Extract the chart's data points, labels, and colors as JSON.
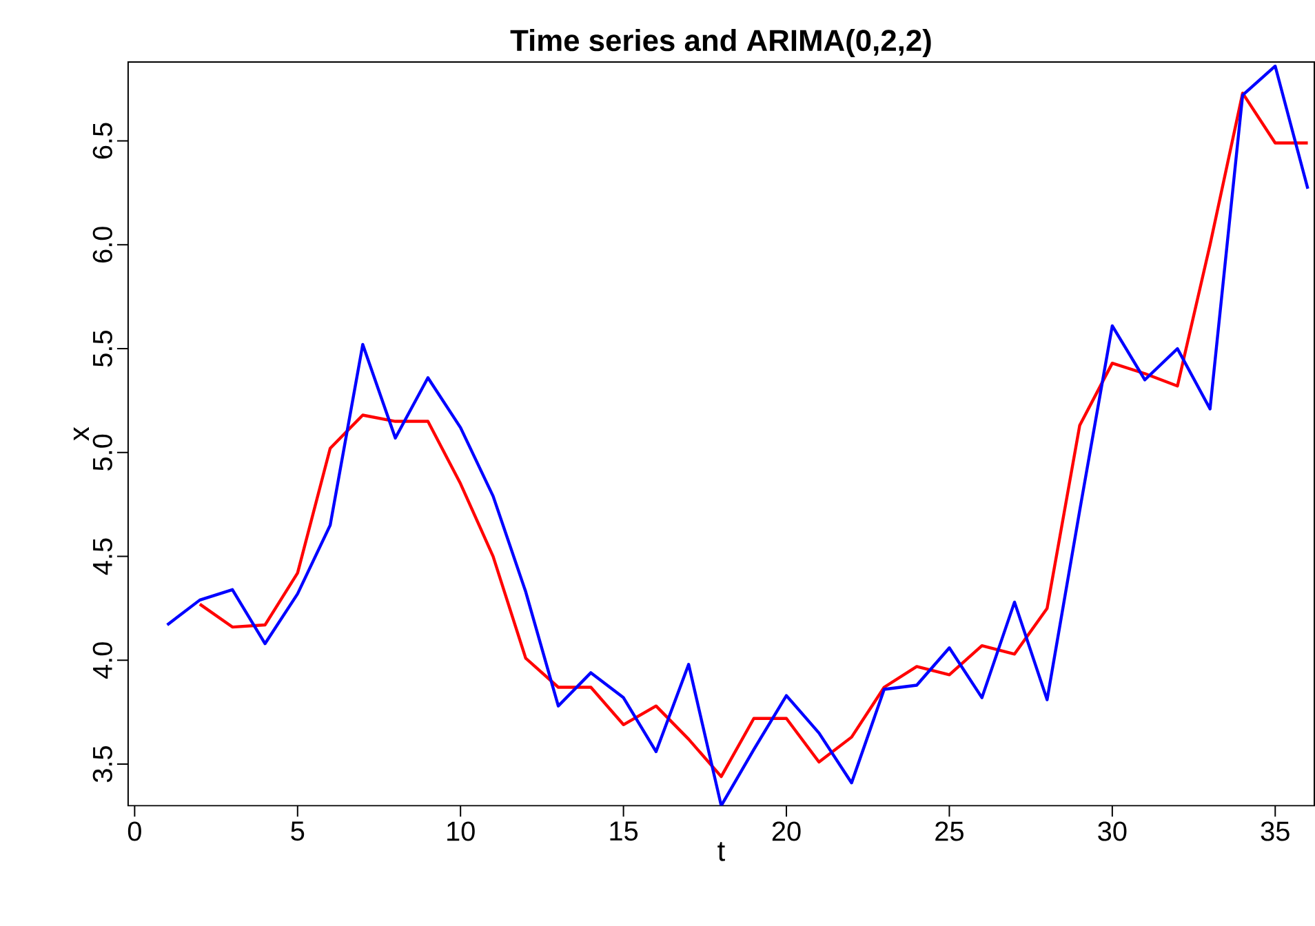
{
  "chart_data": {
    "type": "line",
    "title": "Time series and ARIMA(0,2,2)",
    "xlabel": "t",
    "ylabel": "x",
    "xlim": [
      -0.2,
      36.2
    ],
    "ylim": [
      3.3,
      6.88
    ],
    "xticks": [
      0,
      5,
      10,
      15,
      20,
      25,
      30,
      35
    ],
    "yticks": [
      3.5,
      {
        "value": 4.0,
        "label": "4.0"
      },
      4.5,
      {
        "value": 5.0,
        "label": "5.0"
      },
      5.5,
      {
        "value": 6.0,
        "label": "6.0"
      },
      6.5
    ],
    "grid": false,
    "marker": "none",
    "line_style": "solid",
    "series": [
      {
        "color": "#ff0000",
        "x": [
          2,
          3,
          4,
          5,
          6,
          7,
          8,
          9,
          10,
          11,
          12,
          13,
          14,
          15,
          16,
          17,
          18,
          19,
          20,
          21,
          22,
          23,
          24,
          25,
          26,
          27,
          28,
          29,
          30,
          31,
          32,
          33,
          34,
          35,
          36
        ],
        "values": [
          4.27,
          4.16,
          4.17,
          4.42,
          5.02,
          5.18,
          5.15,
          5.15,
          4.85,
          4.5,
          4.01,
          3.87,
          3.87,
          3.69,
          3.78,
          3.62,
          3.44,
          3.72,
          3.72,
          3.51,
          3.63,
          3.87,
          3.97,
          3.93,
          4.07,
          4.03,
          4.25,
          5.13,
          5.43,
          5.38,
          5.32,
          6.0,
          6.73,
          6.49,
          6.49
        ]
      },
      {
        "color": "#0000ff",
        "x": [
          1,
          2,
          3,
          4,
          5,
          6,
          7,
          8,
          9,
          10,
          11,
          12,
          13,
          14,
          15,
          16,
          17,
          18,
          19,
          20,
          21,
          22,
          23,
          24,
          25,
          26,
          27,
          28,
          29,
          30,
          31,
          32,
          33,
          34,
          35,
          36
        ],
        "values": [
          4.17,
          4.29,
          4.34,
          4.08,
          4.32,
          4.65,
          5.52,
          5.07,
          5.36,
          5.12,
          4.79,
          4.33,
          3.78,
          3.94,
          3.82,
          3.56,
          3.98,
          3.3,
          3.57,
          3.83,
          3.65,
          3.41,
          3.86,
          3.88,
          4.06,
          3.82,
          4.28,
          3.81,
          4.72,
          5.61,
          5.35,
          5.5,
          5.21,
          6.72,
          6.86,
          6.27
        ]
      }
    ]
  }
}
